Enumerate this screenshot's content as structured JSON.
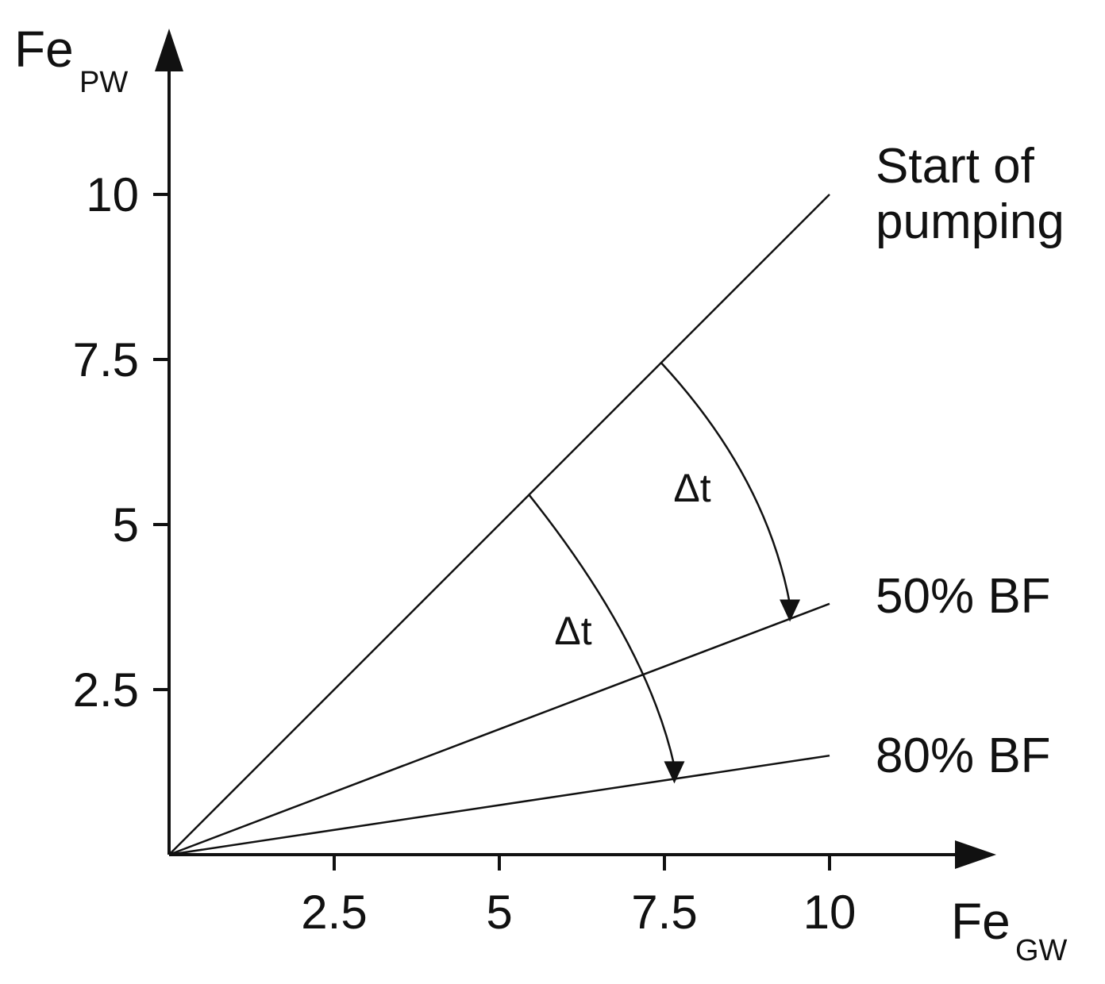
{
  "chart_data": {
    "type": "line",
    "title": "",
    "xlabel": {
      "main": "Fe",
      "sub": "GW"
    },
    "ylabel": {
      "main": "Fe",
      "sub": "PW"
    },
    "xlim": [
      0,
      10
    ],
    "ylim": [
      0,
      10
    ],
    "xticks": [
      "2.5",
      "5",
      "7.5",
      "10"
    ],
    "yticks": [
      "2.5",
      "5",
      "7.5",
      "10"
    ],
    "grid": false,
    "series": [
      {
        "name": "Start of pumping",
        "label_lines": [
          "Start of",
          "pumping"
        ],
        "x": [
          0,
          10
        ],
        "y": [
          0,
          10
        ]
      },
      {
        "name": "50% BF",
        "label_lines": [
          "50% BF"
        ],
        "x": [
          0,
          10
        ],
        "y": [
          0,
          3.8
        ]
      },
      {
        "name": "80% BF",
        "label_lines": [
          "80% BF"
        ],
        "x": [
          0,
          10
        ],
        "y": [
          0,
          1.5
        ]
      }
    ],
    "annotations": [
      {
        "text": "Δt",
        "from": [
          7.45,
          7.45
        ],
        "to": [
          9.4,
          3.6
        ]
      },
      {
        "text": "Δt",
        "from": [
          5.45,
          5.45
        ],
        "to": [
          7.65,
          1.15
        ]
      }
    ]
  }
}
